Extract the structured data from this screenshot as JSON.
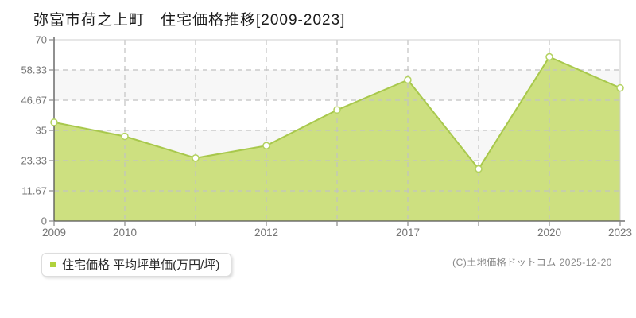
{
  "title": "弥富市荷之上町　住宅価格推移[2009-2023]",
  "legend": {
    "label": "住宅価格 平均坪単価(万円/坪)",
    "marker_icon": "square-icon"
  },
  "footer": {
    "credit": "(C)土地価格ドットコム 2025-12-20"
  },
  "colors": {
    "area_fill": "#cde080",
    "line": "#a8c84c",
    "marker_stroke": "#b2d15e",
    "marker_fill": "#ffffff",
    "legend_marker": "#b0d23c",
    "grid": "#c3c3c3",
    "band_gray": "#f7f7f7",
    "band_white": "#ffffff",
    "plot_border": "#cfcfcf",
    "axis": "#555555",
    "tick": "#8a8a8a",
    "tick_text": "#757575",
    "title_text": "#1a1a1a",
    "credit_text": "#888888"
  },
  "chart_data": {
    "type": "area",
    "series_name": "住宅価格 平均坪単価",
    "unit": "万円/坪",
    "x_tick_labels": [
      "2009",
      "2010",
      "",
      "2012",
      "",
      "2017",
      "",
      "2020",
      "2023"
    ],
    "values": [
      38.1,
      32.7,
      24.3,
      29.1,
      42.9,
      54.5,
      20.1,
      63.4,
      51.4
    ],
    "y_ticks": [
      0,
      11.67,
      23.33,
      35,
      46.67,
      58.33,
      70
    ],
    "y_tick_labels": [
      "0",
      "11.67",
      "23.33",
      "35",
      "46.67",
      "58.33",
      "70"
    ],
    "ylim": [
      0,
      70
    ],
    "x_range_label": "2009-2023",
    "grid": true,
    "grid_style": "dashed",
    "legend_position": "bottom-left",
    "marker_shape": "circle"
  }
}
